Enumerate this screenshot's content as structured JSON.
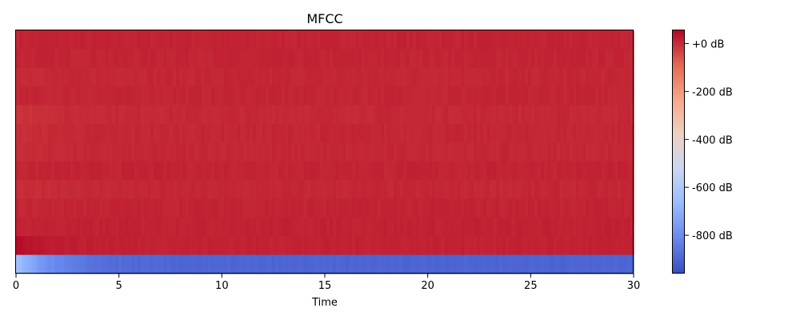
{
  "chart_data": {
    "type": "heatmap",
    "title": "MFCC",
    "xlabel": "Time",
    "ylabel": "",
    "xlim": [
      0,
      30
    ],
    "x_ticks": [
      0,
      5,
      10,
      15,
      20,
      25,
      30
    ],
    "rows": 13,
    "colorbar": {
      "colormap": "coolwarm",
      "range": [
        -960,
        55
      ],
      "ticks": [
        0,
        -200,
        -400,
        -600,
        -800
      ],
      "tick_labels": [
        "+0 dB",
        "-200 dB",
        "-400 dB",
        "-600 dB",
        "-800 dB"
      ],
      "colors": [
        "#3b4cc0",
        "#6788ee",
        "#9abbff",
        "#c9d7f0",
        "#edd1c2",
        "#f7a889",
        "#e26952",
        "#b40426"
      ]
    },
    "coefficients_top_to_bottom": [
      {
        "index": 12,
        "start_db": 10,
        "mean_db": 10
      },
      {
        "index": 11,
        "start_db": 8,
        "mean_db": 9
      },
      {
        "index": 10,
        "start_db": 0,
        "mean_db": 6
      },
      {
        "index": 9,
        "start_db": 5,
        "mean_db": 8
      },
      {
        "index": 8,
        "start_db": -15,
        "mean_db": 4
      },
      {
        "index": 7,
        "start_db": -8,
        "mean_db": 6
      },
      {
        "index": 6,
        "start_db": -5,
        "mean_db": 5
      },
      {
        "index": 5,
        "start_db": 8,
        "mean_db": 10
      },
      {
        "index": 4,
        "start_db": -8,
        "mean_db": 5
      },
      {
        "index": 3,
        "start_db": 5,
        "mean_db": 10
      },
      {
        "index": 2,
        "start_db": 10,
        "mean_db": 12
      },
      {
        "index": 1,
        "start_db": 45,
        "mean_db": 12
      },
      {
        "index": 0,
        "start_db": -640,
        "mean_db": -900
      }
    ]
  }
}
